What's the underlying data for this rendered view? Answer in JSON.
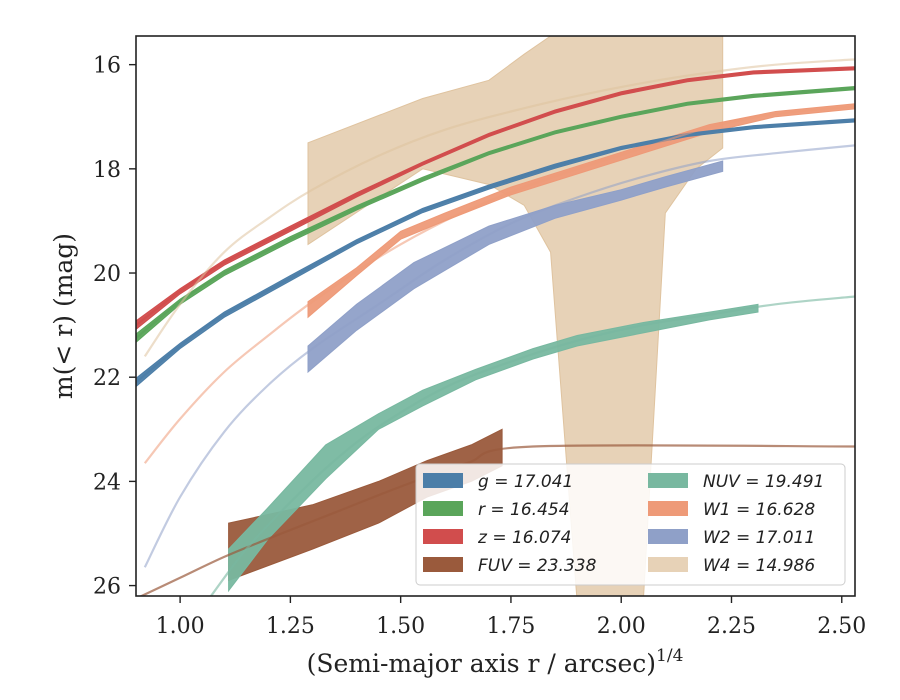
{
  "chart_data": {
    "type": "line",
    "xlabel": "(Semi-major axis r / arcsec)",
    "xlabel_exponent": "1/4",
    "ylabel": "m(< r) (mag)",
    "xlim": [
      0.9,
      2.53
    ],
    "ylim": [
      26.2,
      15.45
    ],
    "y_inverted": true,
    "grid": false,
    "legend_position": "lower-right",
    "x_ticks": [
      "1.00",
      "1.25",
      "1.50",
      "1.75",
      "2.00",
      "2.25",
      "2.50"
    ],
    "x_tick_values": [
      1.0,
      1.25,
      1.5,
      1.75,
      2.0,
      2.25,
      2.5
    ],
    "y_ticks": [
      "16",
      "18",
      "20",
      "22",
      "24",
      "26"
    ],
    "y_tick_values": [
      16,
      18,
      20,
      22,
      24,
      26
    ],
    "series": [
      {
        "key": "g",
        "name": "g = 17.041",
        "color": "#4c7ea8",
        "curve": {
          "x": [
            0.9,
            1.0,
            1.1,
            1.25,
            1.4,
            1.55,
            1.7,
            1.85,
            2.0,
            2.15,
            2.3,
            2.53
          ],
          "y": [
            22.1,
            21.4,
            20.8,
            20.1,
            19.4,
            18.8,
            18.35,
            17.95,
            17.6,
            17.35,
            17.2,
            17.07
          ]
        },
        "band": {
          "x": [
            0.9,
            1.0,
            1.1,
            1.25,
            1.4,
            1.55,
            1.7,
            1.85,
            2.0,
            2.15,
            2.3,
            2.53
          ],
          "lo": [
            22.02,
            21.35,
            20.75,
            20.05,
            19.36,
            18.76,
            18.31,
            17.91,
            17.57,
            17.32,
            17.17,
            17.04
          ],
          "hi": [
            22.18,
            21.45,
            20.85,
            20.15,
            19.44,
            18.84,
            18.39,
            17.99,
            17.63,
            17.38,
            17.23,
            17.1
          ]
        }
      },
      {
        "key": "r",
        "name": "r = 16.454",
        "color": "#5aa55a",
        "curve": {
          "x": [
            0.9,
            1.0,
            1.1,
            1.25,
            1.4,
            1.55,
            1.7,
            1.85,
            2.0,
            2.15,
            2.3,
            2.53
          ],
          "y": [
            21.25,
            20.55,
            20.0,
            19.35,
            18.75,
            18.2,
            17.7,
            17.3,
            17.0,
            16.75,
            16.6,
            16.45
          ]
        },
        "band": {
          "x": [
            0.9,
            1.0,
            1.1,
            1.25,
            1.4,
            1.55,
            1.7,
            1.85,
            2.0,
            2.15,
            2.3,
            2.53
          ],
          "lo": [
            21.17,
            20.5,
            19.95,
            19.3,
            18.71,
            18.16,
            17.67,
            17.27,
            16.97,
            16.72,
            16.57,
            16.42
          ],
          "hi": [
            21.33,
            20.6,
            20.05,
            19.4,
            18.79,
            18.24,
            17.73,
            17.33,
            17.03,
            16.78,
            16.63,
            16.48
          ]
        }
      },
      {
        "key": "z",
        "name": "z = 16.074",
        "color": "#d14d4d",
        "curve": {
          "x": [
            0.9,
            1.0,
            1.1,
            1.25,
            1.4,
            1.55,
            1.7,
            1.85,
            2.0,
            2.15,
            2.3,
            2.53
          ],
          "y": [
            21.0,
            20.35,
            19.8,
            19.15,
            18.5,
            17.9,
            17.35,
            16.9,
            16.55,
            16.3,
            16.15,
            16.07
          ]
        },
        "band": {
          "x": [
            0.9,
            1.0,
            1.1,
            1.25,
            1.4,
            1.55,
            1.7,
            1.85,
            2.0,
            2.15,
            2.3,
            2.53
          ],
          "lo": [
            20.92,
            20.3,
            19.75,
            19.1,
            18.46,
            17.87,
            17.32,
            16.87,
            16.52,
            16.27,
            16.12,
            16.04
          ],
          "hi": [
            21.08,
            20.4,
            19.85,
            19.2,
            18.54,
            17.93,
            17.38,
            16.93,
            16.58,
            16.33,
            16.18,
            16.1
          ]
        }
      },
      {
        "key": "FUV",
        "name": "FUV = 23.338",
        "color": "#9a5a3c",
        "curve": {
          "x": [
            0.9,
            1.0,
            1.1,
            1.2,
            1.35,
            1.5,
            1.65,
            1.8,
            2.53
          ],
          "y": [
            26.25,
            25.85,
            25.45,
            25.1,
            24.6,
            24.1,
            23.65,
            23.33,
            23.33
          ]
        },
        "band": {
          "x": [
            1.11,
            1.3,
            1.45,
            1.56,
            1.66,
            1.73
          ],
          "lo": [
            24.8,
            24.45,
            24.0,
            23.6,
            23.3,
            23.0
          ],
          "hi": [
            25.9,
            25.3,
            24.8,
            24.3,
            24.0,
            23.7
          ]
        }
      },
      {
        "key": "NUV",
        "name": "NUV = 19.491",
        "color": "#78b8a0",
        "curve": {
          "x": [
            1.07,
            1.15,
            1.25,
            1.35,
            1.45,
            1.6,
            1.75,
            1.9,
            2.05,
            2.2,
            2.35,
            2.53
          ],
          "y": [
            26.2,
            25.3,
            24.4,
            23.6,
            22.95,
            22.2,
            21.7,
            21.3,
            21.0,
            20.8,
            20.6,
            20.45
          ]
        },
        "band": {
          "x": [
            1.11,
            1.2,
            1.33,
            1.45,
            1.55,
            1.67,
            1.8,
            1.9,
            2.05,
            2.2,
            2.31
          ],
          "lo": [
            25.3,
            24.5,
            23.3,
            22.7,
            22.25,
            21.85,
            21.45,
            21.2,
            20.95,
            20.75,
            20.6
          ],
          "hi": [
            26.1,
            25.1,
            23.95,
            23.0,
            22.55,
            22.05,
            21.65,
            21.4,
            21.15,
            20.9,
            20.75
          ]
        }
      },
      {
        "key": "W1",
        "name": "W1 = 16.628",
        "color": "#ee9a78",
        "curve": {
          "x": [
            0.92,
            1.0,
            1.1,
            1.2,
            1.3,
            1.45,
            1.6,
            1.75,
            1.9,
            2.05,
            2.2,
            2.35,
            2.53
          ],
          "y": [
            23.65,
            22.8,
            21.9,
            21.2,
            20.55,
            19.7,
            19.0,
            18.45,
            18.0,
            17.6,
            17.2,
            16.95,
            16.8
          ]
        },
        "band": {
          "x": [
            1.29,
            1.4,
            1.5,
            1.6,
            1.75,
            1.9,
            2.05,
            2.2,
            2.35,
            2.53
          ],
          "lo": [
            20.55,
            19.9,
            19.2,
            18.85,
            18.35,
            17.95,
            17.55,
            17.15,
            16.9,
            16.75
          ],
          "hi": [
            20.85,
            20.05,
            19.35,
            19.0,
            18.5,
            18.1,
            17.7,
            17.3,
            17.0,
            16.85
          ]
        }
      },
      {
        "key": "W2",
        "name": "W2 = 17.011",
        "color": "#8fa0c8",
        "curve": {
          "x": [
            0.92,
            1.0,
            1.1,
            1.2,
            1.3,
            1.45,
            1.6,
            1.75,
            1.9,
            2.05,
            2.2,
            2.35,
            2.53
          ],
          "y": [
            25.65,
            24.3,
            23.05,
            22.15,
            21.45,
            20.6,
            19.75,
            19.05,
            18.55,
            18.15,
            17.85,
            17.7,
            17.55
          ]
        },
        "band": {
          "x": [
            1.29,
            1.4,
            1.53,
            1.7,
            1.85,
            2.0,
            2.1,
            2.23
          ],
          "lo": [
            21.4,
            20.6,
            19.8,
            19.1,
            18.7,
            18.4,
            18.15,
            17.85
          ],
          "hi": [
            21.9,
            21.1,
            20.3,
            19.45,
            18.95,
            18.6,
            18.35,
            18.05
          ]
        }
      },
      {
        "key": "W4",
        "name": "W4 = 14.986",
        "color": "#dfc39f",
        "curve": {
          "x": [
            0.92,
            1.0,
            1.1,
            1.2,
            1.3,
            1.45,
            1.6,
            1.75,
            1.9,
            2.05,
            2.2,
            2.35,
            2.53
          ],
          "y": [
            21.6,
            20.6,
            19.6,
            18.95,
            18.4,
            17.75,
            17.25,
            16.9,
            16.6,
            16.35,
            16.15,
            16.0,
            15.9
          ]
        },
        "band": {
          "x": [
            1.29,
            1.55,
            1.7,
            1.78,
            1.84,
            1.9,
            1.95,
            2.05,
            2.1,
            2.17,
            2.23
          ],
          "lo": [
            17.5,
            16.65,
            16.3,
            15.8,
            15.45,
            15.45,
            15.45,
            15.45,
            15.45,
            15.45,
            15.45
          ],
          "hi": [
            19.45,
            18.0,
            18.3,
            18.7,
            19.6,
            26.3,
            26.3,
            26.3,
            18.85,
            18.0,
            17.6
          ]
        }
      }
    ],
    "legend_columns": [
      [
        "g",
        "r",
        "z",
        "FUV"
      ],
      [
        "NUV",
        "W1",
        "W2",
        "W4"
      ]
    ]
  }
}
